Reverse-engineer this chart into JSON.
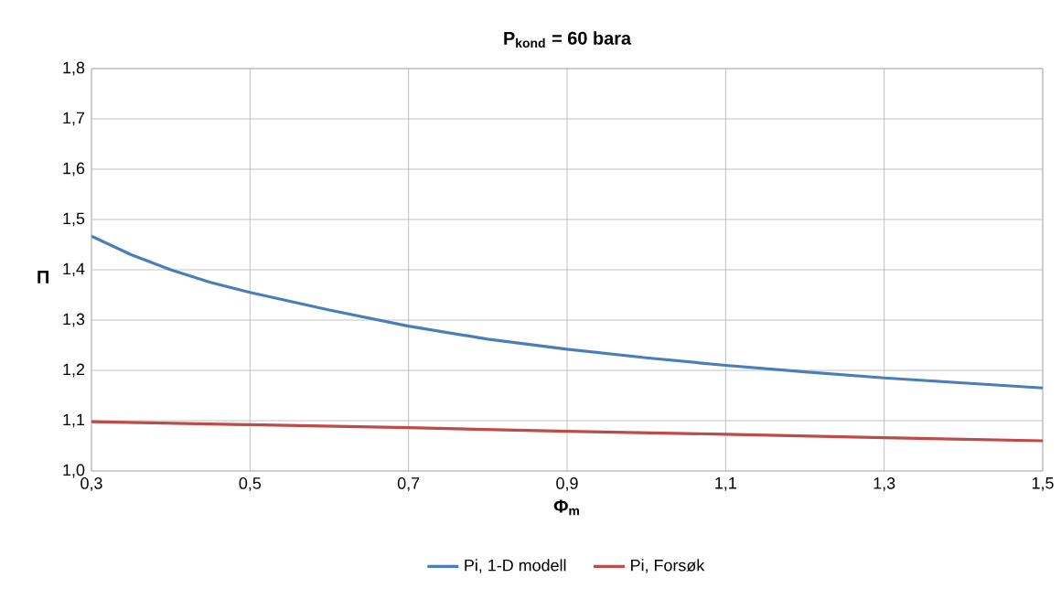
{
  "chart_data": {
    "type": "line",
    "title": "P$_{kond}$ = 60 bara",
    "xlabel": "Φ$_{m}$",
    "ylabel": "Π",
    "series": [
      {
        "name": "Pi, 1-D modell",
        "color": "#4a7ebb",
        "x": [
          0.3,
          0.35,
          0.4,
          0.45,
          0.5,
          0.6,
          0.7,
          0.8,
          0.9,
          1.0,
          1.1,
          1.2,
          1.3,
          1.4,
          1.5
        ],
        "values": [
          1.467,
          1.43,
          1.4,
          1.375,
          1.355,
          1.32,
          1.288,
          1.262,
          1.242,
          1.225,
          1.21,
          1.197,
          1.185,
          1.175,
          1.165
        ]
      },
      {
        "name": "Pi, Forsøk",
        "color": "#be4b48",
        "x": [
          0.3,
          0.5,
          0.7,
          0.9,
          1.1,
          1.3,
          1.5
        ],
        "values": [
          1.098,
          1.092,
          1.086,
          1.079,
          1.073,
          1.066,
          1.06
        ]
      }
    ],
    "xlim": [
      0.3,
      1.5
    ],
    "ylim": [
      1.0,
      1.8
    ],
    "xticks": [
      {
        "value": 0.3,
        "label": "0,3"
      },
      {
        "value": 0.5,
        "label": "0,5"
      },
      {
        "value": 0.7,
        "label": "0,7"
      },
      {
        "value": 0.9,
        "label": "0,9"
      },
      {
        "value": 1.1,
        "label": "1,1"
      },
      {
        "value": 1.3,
        "label": "1,3"
      },
      {
        "value": 1.5,
        "label": "1,5"
      }
    ],
    "yticks": [
      {
        "value": 1.0,
        "label": "1,0"
      },
      {
        "value": 1.1,
        "label": "1,1"
      },
      {
        "value": 1.2,
        "label": "1,2"
      },
      {
        "value": 1.3,
        "label": "1,3"
      },
      {
        "value": 1.4,
        "label": "1,4"
      },
      {
        "value": 1.5,
        "label": "1,5"
      },
      {
        "value": 1.6,
        "label": "1,6"
      },
      {
        "value": 1.7,
        "label": "1,7"
      },
      {
        "value": 1.8,
        "label": "1,8"
      }
    ],
    "grid": true,
    "legend": "bottom",
    "marker": "none",
    "line_style": "solid"
  }
}
